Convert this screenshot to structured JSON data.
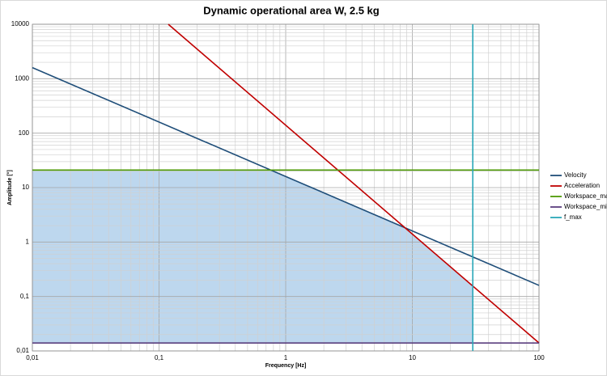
{
  "chart_data": {
    "type": "line",
    "title": "Dynamic operational area W, 2.5 kg",
    "x_label": "Frequency [Hz]",
    "y_label": "Amplitude [°]",
    "x_log": true,
    "y_log": true,
    "grid": true,
    "minor_grid": true,
    "legend": "right",
    "xlim": [
      0.01,
      100
    ],
    "ylim": [
      0.01,
      10000
    ],
    "xticks": [
      {
        "value": 0.01,
        "label": "0,01"
      },
      {
        "value": 0.1,
        "label": "0,1"
      },
      1,
      10,
      100
    ],
    "yticks": [
      {
        "value": 0.01,
        "label": "0,01"
      },
      {
        "value": 0.1,
        "label": "0,1"
      },
      1,
      10,
      100,
      1000,
      10000
    ],
    "fill": {
      "color": "#bdd7ee",
      "x": [
        0.01,
        0.762,
        8.75,
        30
      ],
      "values": [
        21,
        21,
        1.83,
        0.156
      ],
      "base": 0.014
    },
    "series": [
      {
        "name": "Velocity",
        "color": "#1f4e79",
        "x": [
          0.01,
          100
        ],
        "values": [
          1600,
          0.16
        ]
      },
      {
        "name": "Acceleration",
        "color": "#c00000",
        "x": [
          0.1183,
          100
        ],
        "values": [
          10000,
          0.014
        ]
      },
      {
        "name": "Workspace_max",
        "color": "#4e9a06",
        "x": [
          0.01,
          100
        ],
        "values": [
          21,
          21
        ]
      },
      {
        "name": "Workspace_min",
        "color": "#5b3f7f",
        "x": [
          0.01,
          100
        ],
        "values": [
          0.014,
          0.014
        ]
      },
      {
        "name": "f_max",
        "color": "#2aa7b8",
        "x": [
          30,
          30
        ],
        "values": [
          0.01,
          10000
        ]
      }
    ]
  }
}
